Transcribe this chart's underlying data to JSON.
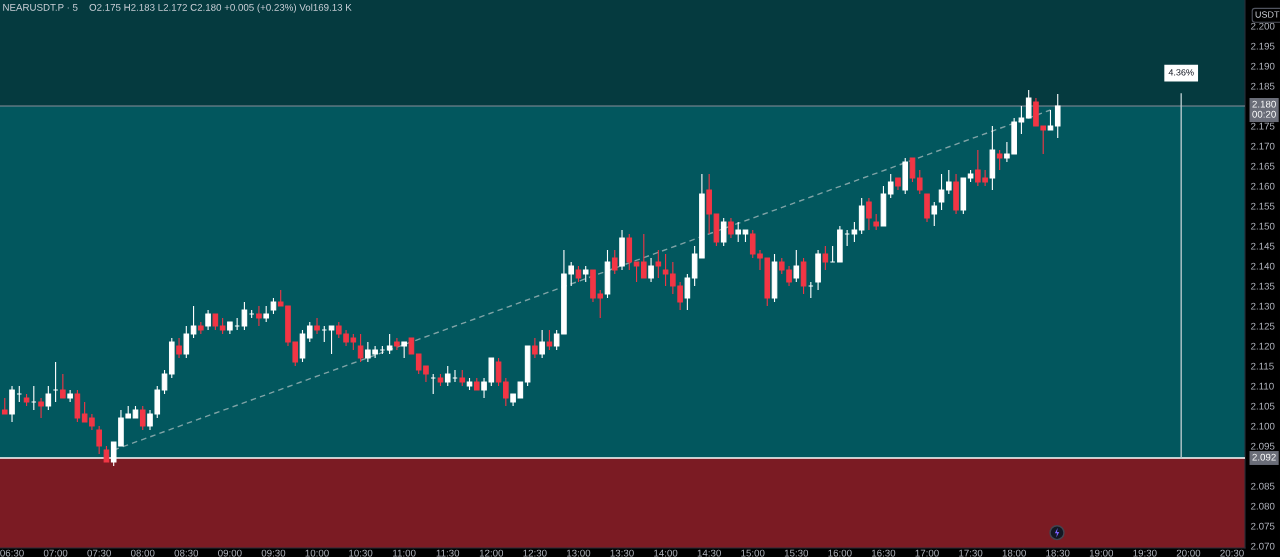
{
  "chart_data": {
    "type": "candlestick",
    "title": "NEARUSDT.P · 5",
    "subtitle": "O2.175 H2.183 L2.172 C2.180 +0.005 (+0.23%) Vol169.13 K",
    "ylabel": "USDT",
    "x": [
      6.4167,
      6.5,
      6.5833,
      6.6667,
      6.75,
      6.8333,
      6.9167,
      7,
      7.0833,
      7.1667,
      7.25,
      7.3333,
      7.4167,
      7.5,
      7.5833,
      7.6667,
      7.75,
      7.8333,
      7.9167,
      8,
      8.0833,
      8.1667,
      8.25,
      8.3333,
      8.4167,
      8.5,
      8.5833,
      8.6667,
      8.75,
      8.8333,
      8.9167,
      9,
      9.0833,
      9.1667,
      9.25,
      9.3333,
      9.4167,
      9.5,
      9.5833,
      9.6667,
      9.75,
      9.8333,
      9.9167,
      10,
      10.0833,
      10.1667,
      10.25,
      10.3333,
      10.4167,
      10.5,
      10.5833,
      10.6667,
      10.75,
      10.8333,
      10.9167,
      11,
      11.0833,
      11.1667,
      11.25,
      11.3333,
      11.4167,
      11.5,
      11.5833,
      11.6667,
      11.75,
      11.8333,
      11.9167,
      12,
      12.0833,
      12.1667,
      12.25,
      12.3333,
      12.4167,
      12.5,
      12.5833,
      12.6667,
      12.75,
      12.8333,
      12.9167,
      13,
      13.0833,
      13.1667,
      13.25,
      13.3333,
      13.4167,
      13.5,
      13.5833,
      13.6667,
      13.75,
      13.8333,
      13.9167,
      14,
      14.0833,
      14.1667,
      14.25,
      14.3333,
      14.4167,
      14.5,
      14.5833,
      14.6667,
      14.75,
      14.8333,
      14.9167,
      15,
      15.0833,
      15.1667,
      15.25,
      15.3333,
      15.4167,
      15.5,
      15.5833,
      15.6667,
      15.75,
      15.8333,
      15.9167,
      16,
      16.0833,
      16.1667,
      16.25,
      16.3333,
      16.4167,
      16.5,
      16.5833,
      16.6667,
      16.75,
      16.8333,
      16.9167,
      17,
      17.0833,
      17.1667,
      17.25,
      17.3333,
      17.4167,
      17.5,
      17.5833,
      17.6667,
      17.75,
      17.8333,
      17.9167,
      18,
      18.0833,
      18.1667,
      18.25,
      18.3333,
      18.4167,
      18.5
    ],
    "ohlc": [
      [
        2.104,
        2.107,
        2.103,
        2.103
      ],
      [
        2.103,
        2.11,
        2.101,
        2.109
      ],
      [
        2.108,
        2.11,
        2.106,
        2.108
      ],
      [
        2.107,
        2.108,
        2.105,
        2.106
      ],
      [
        2.106,
        2.11,
        2.104,
        2.106
      ],
      [
        2.106,
        2.107,
        2.102,
        2.105
      ],
      [
        2.105,
        2.11,
        2.104,
        2.108
      ],
      [
        2.109,
        2.116,
        2.106,
        2.109
      ],
      [
        2.109,
        2.113,
        2.107,
        2.107
      ],
      [
        2.107,
        2.109,
        2.106,
        2.108
      ],
      [
        2.108,
        2.109,
        2.101,
        2.102
      ],
      [
        2.103,
        2.106,
        2.101,
        2.101
      ],
      [
        2.102,
        2.103,
        2.099,
        2.1
      ],
      [
        2.099,
        2.1,
        2.093,
        2.095
      ],
      [
        2.094,
        2.095,
        2.091,
        2.091
      ],
      [
        2.091,
        2.096,
        2.09,
        2.096
      ],
      [
        2.095,
        2.104,
        2.095,
        2.102
      ],
      [
        2.102,
        2.105,
        2.102,
        2.103
      ],
      [
        2.102,
        2.105,
        2.102,
        2.104
      ],
      [
        2.104,
        2.105,
        2.099,
        2.1
      ],
      [
        2.1,
        2.104,
        2.099,
        2.103
      ],
      [
        2.103,
        2.11,
        2.102,
        2.109
      ],
      [
        2.109,
        2.114,
        2.108,
        2.113
      ],
      [
        2.113,
        2.122,
        2.112,
        2.121
      ],
      [
        2.12,
        2.122,
        2.117,
        2.118
      ],
      [
        2.118,
        2.125,
        2.117,
        2.123
      ],
      [
        2.123,
        2.13,
        2.122,
        2.125
      ],
      [
        2.125,
        2.126,
        2.123,
        2.124
      ],
      [
        2.125,
        2.129,
        2.124,
        2.128
      ],
      [
        2.128,
        2.128,
        2.124,
        2.125
      ],
      [
        2.125,
        2.127,
        2.123,
        2.124
      ],
      [
        2.124,
        2.126,
        2.123,
        2.126
      ],
      [
        2.125,
        2.127,
        2.124,
        2.125
      ],
      [
        2.125,
        2.131,
        2.124,
        2.129
      ],
      [
        2.128,
        2.129,
        2.127,
        2.128
      ],
      [
        2.128,
        2.13,
        2.125,
        2.127
      ],
      [
        2.127,
        2.13,
        2.126,
        2.128
      ],
      [
        2.129,
        2.132,
        2.128,
        2.131
      ],
      [
        2.131,
        2.134,
        2.13,
        2.13
      ],
      [
        2.13,
        2.13,
        2.12,
        2.121
      ],
      [
        2.121,
        2.121,
        2.115,
        2.116
      ],
      [
        2.117,
        2.124,
        2.116,
        2.123
      ],
      [
        2.122,
        2.126,
        2.121,
        2.125
      ],
      [
        2.125,
        2.127,
        2.123,
        2.124
      ],
      [
        2.124,
        2.125,
        2.121,
        2.124
      ],
      [
        2.124,
        2.125,
        2.118,
        2.125
      ],
      [
        2.125,
        2.126,
        2.122,
        2.123
      ],
      [
        2.123,
        2.124,
        2.12,
        2.121
      ],
      [
        2.122,
        2.123,
        2.119,
        2.121
      ],
      [
        2.12,
        2.123,
        2.116,
        2.117
      ],
      [
        2.117,
        2.121,
        2.116,
        2.119
      ],
      [
        2.118,
        2.12,
        2.117,
        2.119
      ],
      [
        2.119,
        2.12,
        2.118,
        2.119
      ],
      [
        2.119,
        2.123,
        2.118,
        2.12
      ],
      [
        2.121,
        2.122,
        2.119,
        2.12
      ],
      [
        2.12,
        2.121,
        2.117,
        2.121
      ],
      [
        2.122,
        2.122,
        2.118,
        2.118
      ],
      [
        2.118,
        2.118,
        2.113,
        2.114
      ],
      [
        2.115,
        2.115,
        2.111,
        2.113
      ],
      [
        2.112,
        2.113,
        2.108,
        2.112
      ],
      [
        2.112,
        2.113,
        2.11,
        2.111
      ],
      [
        2.111,
        2.115,
        2.11,
        2.113
      ],
      [
        2.112,
        2.114,
        2.111,
        2.112
      ],
      [
        2.112,
        2.114,
        2.11,
        2.111
      ],
      [
        2.11,
        2.112,
        2.109,
        2.111
      ],
      [
        2.111,
        2.112,
        2.109,
        2.109
      ],
      [
        2.109,
        2.112,
        2.107,
        2.111
      ],
      [
        2.111,
        2.117,
        2.11,
        2.117
      ],
      [
        2.116,
        2.117,
        2.11,
        2.111
      ],
      [
        2.111,
        2.112,
        2.105,
        2.107
      ],
      [
        2.106,
        2.108,
        2.105,
        2.108
      ],
      [
        2.107,
        2.111,
        2.107,
        2.111
      ],
      [
        2.111,
        2.12,
        2.11,
        2.12
      ],
      [
        2.12,
        2.122,
        2.117,
        2.118
      ],
      [
        2.118,
        2.124,
        2.117,
        2.121
      ],
      [
        2.121,
        2.124,
        2.119,
        2.12
      ],
      [
        2.12,
        2.124,
        2.119,
        2.123
      ],
      [
        2.123,
        2.144,
        2.123,
        2.138
      ],
      [
        2.138,
        2.141,
        2.135,
        2.14
      ],
      [
        2.139,
        2.14,
        2.136,
        2.137
      ],
      [
        2.138,
        2.14,
        2.136,
        2.139
      ],
      [
        2.139,
        2.139,
        2.131,
        2.132
      ],
      [
        2.133,
        2.134,
        2.127,
        2.132
      ],
      [
        2.133,
        2.144,
        2.132,
        2.141
      ],
      [
        2.142,
        2.144,
        2.138,
        2.139
      ],
      [
        2.14,
        2.149,
        2.139,
        2.147
      ],
      [
        2.147,
        2.148,
        2.139,
        2.141
      ],
      [
        2.141,
        2.141,
        2.136,
        2.14
      ],
      [
        2.141,
        2.148,
        2.137,
        2.137
      ],
      [
        2.137,
        2.142,
        2.136,
        2.14
      ],
      [
        2.141,
        2.144,
        2.137,
        2.14
      ],
      [
        2.139,
        2.143,
        2.135,
        2.138
      ],
      [
        2.138,
        2.141,
        2.133,
        2.135
      ],
      [
        2.135,
        2.136,
        2.129,
        2.131
      ],
      [
        2.132,
        2.138,
        2.129,
        2.137
      ],
      [
        2.137,
        2.145,
        2.135,
        2.143
      ],
      [
        2.142,
        2.163,
        2.142,
        2.158
      ],
      [
        2.159,
        2.163,
        2.148,
        2.153
      ],
      [
        2.153,
        2.153,
        2.145,
        2.146
      ],
      [
        2.146,
        2.152,
        2.145,
        2.151
      ],
      [
        2.151,
        2.152,
        2.147,
        2.148
      ],
      [
        2.148,
        2.151,
        2.146,
        2.149
      ],
      [
        2.148,
        2.149,
        2.146,
        2.149
      ],
      [
        2.148,
        2.149,
        2.142,
        2.143
      ],
      [
        2.143,
        2.144,
        2.139,
        2.142
      ],
      [
        2.142,
        2.142,
        2.13,
        2.132
      ],
      [
        2.132,
        2.143,
        2.131,
        2.141
      ],
      [
        2.141,
        2.142,
        2.138,
        2.139
      ],
      [
        2.139,
        2.14,
        2.135,
        2.136
      ],
      [
        2.137,
        2.144,
        2.136,
        2.14
      ],
      [
        2.141,
        2.142,
        2.133,
        2.135
      ],
      [
        2.135,
        2.136,
        2.132,
        2.135
      ],
      [
        2.136,
        2.144,
        2.134,
        2.143
      ],
      [
        2.143,
        2.145,
        2.139,
        2.141
      ],
      [
        2.141,
        2.145,
        2.141,
        2.141
      ],
      [
        2.141,
        2.15,
        2.141,
        2.149
      ],
      [
        2.148,
        2.149,
        2.145,
        2.148
      ],
      [
        2.148,
        2.151,
        2.146,
        2.149
      ],
      [
        2.149,
        2.157,
        2.148,
        2.155
      ],
      [
        2.156,
        2.157,
        2.149,
        2.152
      ],
      [
        2.151,
        2.153,
        2.149,
        2.15
      ],
      [
        2.15,
        2.16,
        2.15,
        2.158
      ],
      [
        2.158,
        2.163,
        2.157,
        2.161
      ],
      [
        2.162,
        2.162,
        2.159,
        2.16
      ],
      [
        2.159,
        2.167,
        2.158,
        2.166
      ],
      [
        2.167,
        2.167,
        2.161,
        2.162
      ],
      [
        2.162,
        2.164,
        2.158,
        2.159
      ],
      [
        2.158,
        2.158,
        2.151,
        2.152
      ],
      [
        2.153,
        2.156,
        2.15,
        2.155
      ],
      [
        2.156,
        2.163,
        2.154,
        2.159
      ],
      [
        2.159,
        2.164,
        2.158,
        2.161
      ],
      [
        2.161,
        2.163,
        2.153,
        2.154
      ],
      [
        2.154,
        2.162,
        2.153,
        2.162
      ],
      [
        2.162,
        2.164,
        2.161,
        2.163
      ],
      [
        2.164,
        2.169,
        2.16,
        2.161
      ],
      [
        2.162,
        2.164,
        2.16,
        2.161
      ],
      [
        2.162,
        2.175,
        2.159,
        2.169
      ],
      [
        2.168,
        2.169,
        2.164,
        2.167
      ],
      [
        2.167,
        2.171,
        2.166,
        2.168
      ],
      [
        2.168,
        2.177,
        2.168,
        2.176
      ],
      [
        2.176,
        2.18,
        2.173,
        2.177
      ],
      [
        2.177,
        2.184,
        2.177,
        2.182
      ],
      [
        2.181,
        2.182,
        2.175,
        2.175
      ],
      [
        2.175,
        2.175,
        2.168,
        2.174
      ],
      [
        2.174,
        2.179,
        2.174,
        2.175
      ],
      [
        2.175,
        2.183,
        2.172,
        2.18
      ]
    ],
    "colors": [
      "#f23645",
      "#ffffff",
      "#ffffff",
      "#f23645",
      "#ffffff",
      "#f23645",
      "#ffffff",
      "#ffffff",
      "#f23645",
      "#ffffff",
      "#f23645",
      "#f23645",
      "#f23645",
      "#f23645",
      "#f23645",
      "#ffffff",
      "#ffffff",
      "#ffffff",
      "#ffffff",
      "#f23645",
      "#ffffff",
      "#ffffff",
      "#ffffff",
      "#ffffff",
      "#f23645",
      "#ffffff",
      "#ffffff",
      "#f23645",
      "#ffffff",
      "#f23645",
      "#f23645",
      "#ffffff",
      "#ffffff",
      "#ffffff",
      "#ffffff",
      "#f23645",
      "#ffffff",
      "#ffffff",
      "#f23645",
      "#f23645",
      "#f23645",
      "#ffffff",
      "#ffffff",
      "#f23645",
      "#ffffff",
      "#ffffff",
      "#f23645",
      "#f23645",
      "#f23645",
      "#f23645",
      "#ffffff",
      "#ffffff",
      "#ffffff",
      "#ffffff",
      "#f23645",
      "#ffffff",
      "#f23645",
      "#f23645",
      "#f23645",
      "#ffffff",
      "#f23645",
      "#ffffff",
      "#ffffff",
      "#f23645",
      "#ffffff",
      "#f23645",
      "#ffffff",
      "#ffffff",
      "#f23645",
      "#f23645",
      "#ffffff",
      "#ffffff",
      "#ffffff",
      "#f23645",
      "#ffffff",
      "#f23645",
      "#ffffff",
      "#ffffff",
      "#ffffff",
      "#f23645",
      "#ffffff",
      "#f23645",
      "#f23645",
      "#ffffff",
      "#f23645",
      "#ffffff",
      "#f23645",
      "#f23645",
      "#f23645",
      "#ffffff",
      "#f23645",
      "#f23645",
      "#f23645",
      "#f23645",
      "#ffffff",
      "#ffffff",
      "#ffffff",
      "#f23645",
      "#f23645",
      "#ffffff",
      "#f23645",
      "#ffffff",
      "#ffffff",
      "#f23645",
      "#f23645",
      "#f23645",
      "#ffffff",
      "#f23645",
      "#f23645",
      "#ffffff",
      "#f23645",
      "#ffffff",
      "#ffffff",
      "#f23645",
      "#ffffff",
      "#ffffff",
      "#ffffff",
      "#ffffff",
      "#ffffff",
      "#f23645",
      "#f23645",
      "#ffffff",
      "#ffffff",
      "#f23645",
      "#ffffff",
      "#f23645",
      "#f23645",
      "#f23645",
      "#ffffff",
      "#ffffff",
      "#ffffff",
      "#f23645",
      "#ffffff",
      "#ffffff",
      "#f23645",
      "#f23645",
      "#ffffff",
      "#f23645",
      "#ffffff",
      "#ffffff",
      "#ffffff",
      "#ffffff",
      "#f23645",
      "#f23645",
      "#ffffff",
      "#ffffff"
    ],
    "series": [
      {
        "type": "line",
        "x": [
          7.6667,
          18.4167
        ],
        "values": [
          2.094,
          2.179
        ],
        "color": "#7fa3a6",
        "line_style": "dashed"
      },
      {
        "type": "line",
        "x": [
          19.9167,
          19.9167
        ],
        "values": [
          2.092,
          2.183
        ],
        "color": "#b7c9cc",
        "line_style": "solid"
      }
    ],
    "xlim": [
      6.362,
      20.649
    ],
    "xticks": [
      {
        "value": 6.5,
        "label": "06:30"
      },
      {
        "value": 7,
        "label": "07:00"
      },
      {
        "value": 7.5,
        "label": "07:30"
      },
      {
        "value": 8,
        "label": "08:00"
      },
      {
        "value": 8.5,
        "label": "08:30"
      },
      {
        "value": 9,
        "label": "09:00"
      },
      {
        "value": 9.5,
        "label": "09:30"
      },
      {
        "value": 10,
        "label": "10:00"
      },
      {
        "value": 10.5,
        "label": "10:30"
      },
      {
        "value": 11,
        "label": "11:00"
      },
      {
        "value": 11.5,
        "label": "11:30"
      },
      {
        "value": 12,
        "label": "12:00"
      },
      {
        "value": 12.5,
        "label": "12:30"
      },
      {
        "value": 13,
        "label": "13:00"
      },
      {
        "value": 13.5,
        "label": "13:30"
      },
      {
        "value": 14,
        "label": "14:00"
      },
      {
        "value": 14.5,
        "label": "14:30"
      },
      {
        "value": 15,
        "label": "15:00"
      },
      {
        "value": 15.5,
        "label": "15:30"
      },
      {
        "value": 16,
        "label": "16:00"
      },
      {
        "value": 16.5,
        "label": "16:30"
      },
      {
        "value": 17,
        "label": "17:00"
      },
      {
        "value": 17.5,
        "label": "17:30"
      },
      {
        "value": 18,
        "label": "18:00"
      },
      {
        "value": 18.5,
        "label": "18:30"
      },
      {
        "value": 19,
        "label": "19:00"
      },
      {
        "value": 19.5,
        "label": "19:30"
      },
      {
        "value": 20,
        "label": "20:00"
      },
      {
        "value": 20.5,
        "label": "20:30"
      }
    ],
    "ylim": [
      2.0695,
      2.2065
    ],
    "yticks": [
      {
        "value": 2.07,
        "label": "2.070"
      },
      2.075,
      {
        "value": 2.08,
        "label": "2.080"
      },
      2.085,
      2.095,
      {
        "value": 2.1,
        "label": "2.100"
      },
      2.105,
      {
        "value": 2.11,
        "label": "2.110"
      },
      2.115,
      {
        "value": 2.12,
        "label": "2.120"
      },
      2.125,
      {
        "value": 2.13,
        "label": "2.130"
      },
      2.135,
      {
        "value": 2.14,
        "label": "2.140"
      },
      2.145,
      {
        "value": 2.15,
        "label": "2.150"
      },
      2.155,
      {
        "value": 2.16,
        "label": "2.160"
      },
      2.165,
      {
        "value": 2.17,
        "label": "2.170"
      },
      2.175,
      2.185,
      {
        "value": 2.19,
        "label": "2.190"
      },
      2.195,
      {
        "value": 2.2,
        "label": "2.200"
      }
    ],
    "bands": [
      {
        "axis": "y",
        "from": 2.18,
        "to": 2.2065,
        "color": "#053a3f"
      },
      {
        "axis": "y",
        "from": 2.092,
        "to": 2.18,
        "color": "#02575e"
      },
      {
        "axis": "y",
        "from": 2.0695,
        "to": 2.092,
        "color": "#7b1b23"
      }
    ],
    "ref_lines": [
      {
        "axis": "y",
        "value": 2.092,
        "label": "2.092",
        "color": "#ffffff"
      },
      {
        "axis": "y",
        "value": 2.18,
        "label": "2.180\n00:20",
        "color": "#8a8e99"
      }
    ],
    "annotations": [
      {
        "text": "4.36%",
        "x": 19.9167,
        "y": 2.183
      }
    ]
  }
}
